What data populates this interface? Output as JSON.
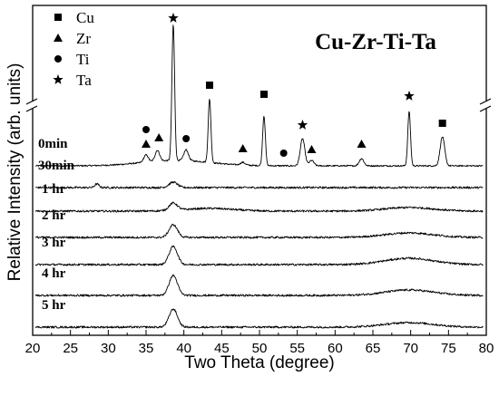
{
  "chart_data": {
    "type": "line",
    "title": "Cu-Zr-Ti-Ta",
    "xlabel": "Two Theta (degree)",
    "ylabel": "Relative Intensity (arb. units)",
    "xlim": [
      20,
      80
    ],
    "xticks": [
      20,
      25,
      30,
      35,
      40,
      45,
      50,
      55,
      60,
      65,
      70,
      75,
      80
    ],
    "grid": false,
    "axis_break": true,
    "legend": {
      "placement": "top-left",
      "entries": [
        {
          "label": "Cu",
          "marker": "square"
        },
        {
          "label": "Zr",
          "marker": "triangle"
        },
        {
          "label": "Ti",
          "marker": "circle"
        },
        {
          "label": "Ta",
          "marker": "star"
        }
      ]
    },
    "series": [
      {
        "name": "0min",
        "peaks": [
          {
            "x": 35.0,
            "h": 8
          },
          {
            "x": 36.5,
            "h": 12
          },
          {
            "x": 38.6,
            "h": 150
          },
          {
            "x": 40.3,
            "h": 12
          },
          {
            "x": 43.4,
            "h": 70
          },
          {
            "x": 47.8,
            "h": 3
          },
          {
            "x": 50.6,
            "h": 55
          },
          {
            "x": 55.7,
            "h": 30
          },
          {
            "x": 56.9,
            "h": 6
          },
          {
            "x": 63.5,
            "h": 8
          },
          {
            "x": 69.8,
            "h": 60
          },
          {
            "x": 74.2,
            "h": 32
          }
        ],
        "markers": [
          {
            "x": 35.0,
            "type": "circle"
          },
          {
            "x": 35.0,
            "type": "triangle"
          },
          {
            "x": 36.7,
            "type": "triangle"
          },
          {
            "x": 38.6,
            "type": "star"
          },
          {
            "x": 40.3,
            "type": "circle"
          },
          {
            "x": 43.4,
            "type": "square"
          },
          {
            "x": 47.8,
            "type": "triangle"
          },
          {
            "x": 50.6,
            "type": "square"
          },
          {
            "x": 53.2,
            "type": "circle"
          },
          {
            "x": 55.7,
            "type": "star"
          },
          {
            "x": 56.9,
            "type": "triangle"
          },
          {
            "x": 63.5,
            "type": "triangle"
          },
          {
            "x": 69.8,
            "type": "star"
          },
          {
            "x": 74.2,
            "type": "square"
          }
        ]
      },
      {
        "name": "30min",
        "peaks": [
          {
            "x": 28.5,
            "h": 4
          },
          {
            "x": 38.6,
            "h": 6
          }
        ]
      },
      {
        "name": "1 hr",
        "peaks": [
          {
            "x": 38.6,
            "h": 8
          },
          {
            "x": 43.4,
            "h": 3
          },
          {
            "x": 69.8,
            "h": 4
          }
        ]
      },
      {
        "name": "2 hr",
        "peaks": [
          {
            "x": 38.6,
            "h": 14
          },
          {
            "x": 69.8,
            "h": 5
          }
        ]
      },
      {
        "name": "3 hr",
        "peaks": [
          {
            "x": 38.6,
            "h": 20
          },
          {
            "x": 69.8,
            "h": 7
          }
        ]
      },
      {
        "name": "4 hr",
        "peaks": [
          {
            "x": 38.6,
            "h": 22
          },
          {
            "x": 69.8,
            "h": 6
          }
        ]
      },
      {
        "name": "5 hr",
        "peaks": [
          {
            "x": 38.6,
            "h": 20
          },
          {
            "x": 69.8,
            "h": 5
          }
        ]
      }
    ]
  }
}
